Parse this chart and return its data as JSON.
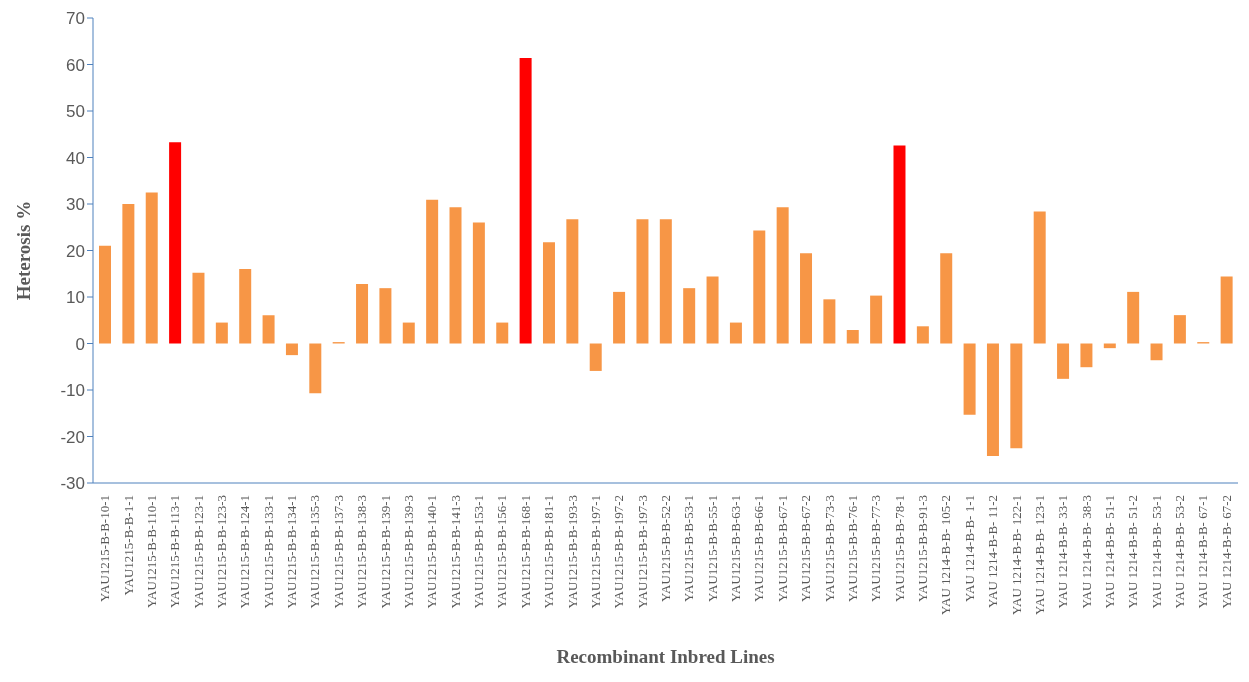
{
  "chart_data": {
    "type": "bar",
    "xlabel": "Recombinant Inbred Lines",
    "ylabel": "Heterosis %",
    "categories": [
      "YAU1215-B-B-10-1",
      "YAU1215-B-B-1-1",
      "YAU1215-B-B-110-1",
      "YAU1215-B-B-113-1",
      "YAU1215-B-B-123-1",
      "YAU1215-B-B-123-3",
      "YAU1215-B-B-124-1",
      "YAU1215-B-B-133-1",
      "YAU1215-B-B-134-1",
      "YAU1215-B-B-135-3",
      "YAU1215-B-B-137-3",
      "YAU1215-B-B-138-3",
      "YAU1215-B-B-139-1",
      "YAU1215-B-B-139-3",
      "YAU1215-B-B-140-1",
      "YAU1215-B-B-141-3",
      "YAU1215-B-B-153-1",
      "YAU1215-B-B-156-1",
      "YAU1215-B-B-168-1",
      "YAU1215-B-B-181-1",
      "YAU1215-B-B-193-3",
      "YAU1215-B-B-197-1",
      "YAU1215-B-B-197-2",
      "YAU1215-B-B-197-3",
      "YAU1215-B-B-52-2",
      "YAU1215-B-B-53-1",
      "YAU1215-B-B-55-1",
      "YAU1215-B-B-63-1",
      "YAU1215-B-B-66-1",
      "YAU1215-B-B-67-1",
      "YAU1215-B-B-67-2",
      "YAU1215-B-B-73-3",
      "YAU1215-B-B-76-1",
      "YAU1215-B-B-77-3",
      "YAU1215-B-B-78-1",
      "YAU1215-B-B-91-3",
      "YAU 1214-B-B- 105-2",
      "YAU 1214-B-B- 1-1",
      "YAU 1214-B-B- 11-2",
      "YAU 1214-B-B- 122-1",
      "YAU 1214-B-B- 123-1",
      "YAU 1214-B-B- 33-1",
      "YAU 1214-B-B- 38-3",
      "YAU 1214-B-B- 51-1",
      "YAU 1214-B-B- 51-2",
      "YAU 1214-B-B- 53-1",
      "YAU 1214-B-B- 53-2",
      "YAU 1214-B-B- 67-1",
      "YAU 1214-B-B- 67-2"
    ],
    "values": [
      21,
      30,
      32.5,
      43.3,
      15.2,
      4.5,
      16,
      6.1,
      -2.5,
      -10.7,
      0.3,
      12.8,
      11.9,
      4.5,
      30.9,
      29.3,
      26,
      4.5,
      61.4,
      21.8,
      26.7,
      -5.9,
      11.1,
      26.7,
      26.7,
      11.9,
      14.4,
      4.5,
      24.3,
      29.3,
      19.4,
      9.5,
      2.9,
      10.3,
      42.6,
      3.7,
      19.4,
      -15.3,
      -24.2,
      -22.5,
      28.4,
      -7.6,
      -5.1,
      -1,
      11.1,
      -3.6,
      6.1,
      0.3,
      14.4
    ],
    "colors": [
      "#f79646",
      "#f79646",
      "#f79646",
      "#ff0000",
      "#f79646",
      "#f79646",
      "#f79646",
      "#f79646",
      "#f79646",
      "#f79646",
      "#f79646",
      "#f79646",
      "#f79646",
      "#f79646",
      "#f79646",
      "#f79646",
      "#f79646",
      "#f79646",
      "#ff0000",
      "#f79646",
      "#f79646",
      "#f79646",
      "#f79646",
      "#f79646",
      "#f79646",
      "#f79646",
      "#f79646",
      "#f79646",
      "#f79646",
      "#f79646",
      "#f79646",
      "#f79646",
      "#f79646",
      "#f79646",
      "#ff0000",
      "#f79646",
      "#f79646",
      "#f79646",
      "#f79646",
      "#f79646",
      "#f79646",
      "#f79646",
      "#f79646",
      "#f79646",
      "#f79646",
      "#f79646",
      "#f79646",
      "#f79646",
      "#f79646"
    ],
    "ylim": [
      -30,
      70
    ],
    "yticks": [
      -30,
      -20,
      -10,
      0,
      10,
      20,
      30,
      40,
      50,
      60,
      70
    ],
    "grid": false,
    "legend": false
  }
}
